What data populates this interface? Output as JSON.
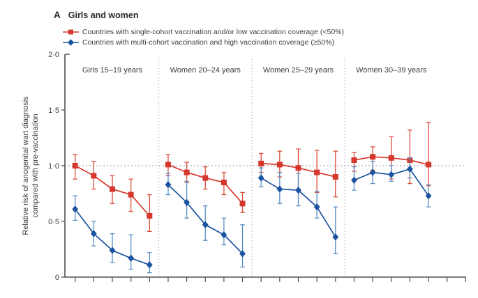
{
  "figure": {
    "panel_letter": "A",
    "title": "Girls and women"
  },
  "chart_data": {
    "type": "line",
    "title": "A Girls and women",
    "ylabel_line1": "Relative risk of anogenital wart diagnosis",
    "ylabel_line2": "compared with pre-vaccination",
    "ylim": [
      0,
      2.0
    ],
    "yticks": [
      0,
      0.5,
      1.0,
      1.5,
      2.0
    ],
    "ytick_labels": [
      "0",
      "0·5",
      "1·0",
      "1·5",
      "2·0"
    ],
    "reference_line": 1.0,
    "grid": false,
    "legend_position": "top-left",
    "x_axis": {
      "points_per_panel": 5,
      "extra_trailing_ticks": 2,
      "tick_labels_visible": false
    },
    "legend": [
      {
        "name": "single-cohort-low-coverage",
        "label": "Countries with single-cohort vaccination and/or low vaccination coverage (<50%)",
        "marker": "square",
        "color": "#d6372c",
        "ci_color": "#dc4c3b"
      },
      {
        "name": "multi-cohort-high-coverage",
        "label": "Countries with multi-cohort vaccination and high vaccination coverage (≥50%)",
        "marker": "diamond",
        "color": "#1b53a0",
        "ci_color": "#5a8ec4"
      }
    ],
    "panels": [
      {
        "label": "Girls 15–19 years",
        "series": [
          {
            "legend": 0,
            "values": [
              1.0,
              0.91,
              0.79,
              0.74,
              0.55
            ],
            "ci_low": [
              0.88,
              0.79,
              0.66,
              0.59,
              0.41
            ],
            "ci_high": [
              1.1,
              1.04,
              0.91,
              0.88,
              0.74
            ]
          },
          {
            "legend": 1,
            "values": [
              0.61,
              0.39,
              0.24,
              0.17,
              0.11
            ],
            "ci_low": [
              0.51,
              0.28,
              0.13,
              0.07,
              0.04
            ],
            "ci_high": [
              0.73,
              0.5,
              0.39,
              0.38,
              0.22
            ]
          }
        ]
      },
      {
        "label": "Women 20–24 years",
        "series": [
          {
            "legend": 0,
            "values": [
              1.01,
              0.94,
              0.89,
              0.85,
              0.66
            ],
            "ci_low": [
              0.91,
              0.85,
              0.79,
              0.74,
              0.58
            ],
            "ci_high": [
              1.1,
              1.03,
              0.99,
              0.94,
              0.76
            ]
          },
          {
            "legend": 1,
            "values": [
              0.83,
              0.67,
              0.47,
              0.38,
              0.21
            ],
            "ci_low": [
              0.74,
              0.53,
              0.33,
              0.29,
              0.09
            ],
            "ci_high": [
              0.93,
              0.86,
              0.64,
              0.53,
              0.47
            ]
          }
        ]
      },
      {
        "label": "Women 25–29 years",
        "series": [
          {
            "legend": 0,
            "values": [
              1.02,
              1.01,
              0.98,
              0.94,
              0.9
            ],
            "ci_low": [
              0.94,
              0.9,
              0.78,
              0.76,
              0.72
            ],
            "ci_high": [
              1.11,
              1.13,
              1.15,
              1.14,
              1.13
            ]
          },
          {
            "legend": 1,
            "values": [
              0.89,
              0.79,
              0.78,
              0.63,
              0.36
            ],
            "ci_low": [
              0.81,
              0.66,
              0.64,
              0.53,
              0.21
            ],
            "ci_high": [
              0.98,
              0.94,
              0.93,
              0.77,
              0.63
            ]
          }
        ]
      },
      {
        "label": "Women 30–39 years",
        "series": [
          {
            "legend": 0,
            "values": [
              1.05,
              1.08,
              1.07,
              1.05,
              1.01
            ],
            "ci_low": [
              0.95,
              0.96,
              0.88,
              0.84,
              0.82
            ],
            "ci_high": [
              1.12,
              1.17,
              1.26,
              1.32,
              1.39
            ]
          },
          {
            "legend": 1,
            "values": [
              0.87,
              0.94,
              0.92,
              0.97,
              0.73
            ],
            "ci_low": [
              0.78,
              0.84,
              0.86,
              0.89,
              0.63
            ],
            "ci_high": [
              0.99,
              1.04,
              1.0,
              1.07,
              0.83
            ]
          }
        ]
      }
    ]
  }
}
